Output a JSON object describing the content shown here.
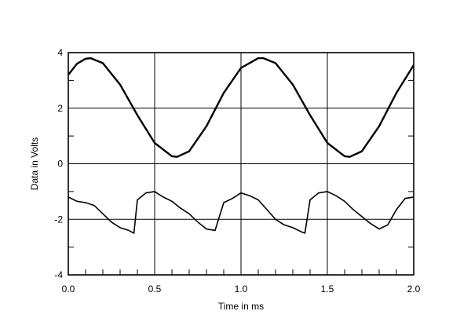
{
  "chart_data": {
    "type": "line",
    "title": "",
    "xlabel": "Time in ms",
    "ylabel": "Data in Volts",
    "xlim": [
      0.0,
      2.0
    ],
    "ylim": [
      -4,
      4
    ],
    "grid": true,
    "x_major_ticks": [
      "0.0",
      "0.5",
      "1.0",
      "1.5",
      "2.0"
    ],
    "y_major_ticks": [
      "4",
      "2",
      "0",
      "-2",
      "-4"
    ],
    "series": [
      {
        "x": [
          0.0,
          0.05,
          0.1,
          0.13,
          0.2,
          0.3,
          0.4,
          0.5,
          0.6,
          0.63,
          0.7,
          0.8,
          0.9,
          1.0,
          1.1,
          1.13,
          1.2,
          1.3,
          1.4,
          1.5,
          1.6,
          1.63,
          1.7,
          1.8,
          1.9,
          2.0
        ],
        "y": [
          3.2,
          3.6,
          3.78,
          3.8,
          3.62,
          2.85,
          1.75,
          0.75,
          0.27,
          0.25,
          0.45,
          1.35,
          2.55,
          3.45,
          3.8,
          3.8,
          3.62,
          2.85,
          1.75,
          0.75,
          0.27,
          0.25,
          0.45,
          1.35,
          2.55,
          3.55
        ]
      },
      {
        "x": [
          0.0,
          0.05,
          0.1,
          0.15,
          0.2,
          0.25,
          0.3,
          0.35,
          0.38,
          0.4,
          0.45,
          0.5,
          0.55,
          0.6,
          0.65,
          0.7,
          0.75,
          0.8,
          0.85,
          0.9,
          0.95,
          1.0,
          1.05,
          1.1,
          1.15,
          1.2,
          1.25,
          1.3,
          1.35,
          1.37,
          1.4,
          1.45,
          1.5,
          1.55,
          1.6,
          1.65,
          1.7,
          1.75,
          1.8,
          1.85,
          1.9,
          1.95,
          2.0
        ],
        "y": [
          -1.2,
          -1.35,
          -1.4,
          -1.5,
          -1.8,
          -2.1,
          -2.3,
          -2.4,
          -2.5,
          -1.3,
          -1.05,
          -1.0,
          -1.2,
          -1.35,
          -1.6,
          -1.8,
          -2.1,
          -2.35,
          -2.4,
          -1.4,
          -1.25,
          -1.05,
          -1.15,
          -1.3,
          -1.65,
          -2.0,
          -2.2,
          -2.3,
          -2.45,
          -2.5,
          -1.3,
          -1.05,
          -1.0,
          -1.15,
          -1.35,
          -1.65,
          -1.9,
          -2.15,
          -2.35,
          -2.2,
          -1.65,
          -1.25,
          -1.2
        ]
      }
    ]
  }
}
